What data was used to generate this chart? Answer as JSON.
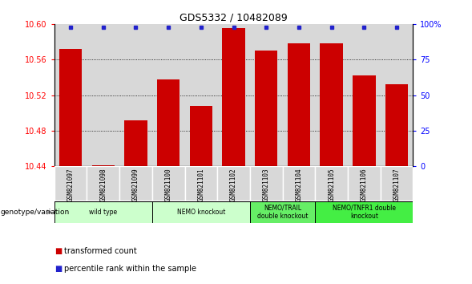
{
  "title": "GDS5332 / 10482089",
  "samples": [
    "GSM821097",
    "GSM821098",
    "GSM821099",
    "GSM821100",
    "GSM821101",
    "GSM821102",
    "GSM821103",
    "GSM821104",
    "GSM821105",
    "GSM821106",
    "GSM821107"
  ],
  "bar_values": [
    10.572,
    10.441,
    10.492,
    10.538,
    10.508,
    10.596,
    10.57,
    10.578,
    10.578,
    10.542,
    10.532
  ],
  "percentile_values": [
    98,
    98,
    98,
    98,
    98,
    98,
    98,
    98,
    98,
    98,
    98
  ],
  "ylim_left": [
    10.44,
    10.6
  ],
  "ylim_right": [
    0,
    100
  ],
  "yticks_left": [
    10.44,
    10.48,
    10.52,
    10.56,
    10.6
  ],
  "yticks_right": [
    0,
    25,
    50,
    75,
    100
  ],
  "bar_color": "#cc0000",
  "dot_color": "#2222cc",
  "bar_width": 0.7,
  "col_bg_color": "#d8d8d8",
  "groups": [
    {
      "label": "wild type",
      "start": 0,
      "end": 2,
      "color": "#ccffcc"
    },
    {
      "label": "NEMO knockout",
      "start": 3,
      "end": 5,
      "color": "#ccffcc"
    },
    {
      "label": "NEMO/TRAIL\ndouble knockout",
      "start": 6,
      "end": 7,
      "color": "#66ee66"
    },
    {
      "label": "NEMO/TNFR1 double\nknockout",
      "start": 8,
      "end": 10,
      "color": "#44ee44"
    }
  ],
  "genotype_label": "genotype/variation",
  "legend_items": [
    {
      "label": "transformed count",
      "color": "#cc0000"
    },
    {
      "label": "percentile rank within the sample",
      "color": "#2222cc"
    }
  ]
}
